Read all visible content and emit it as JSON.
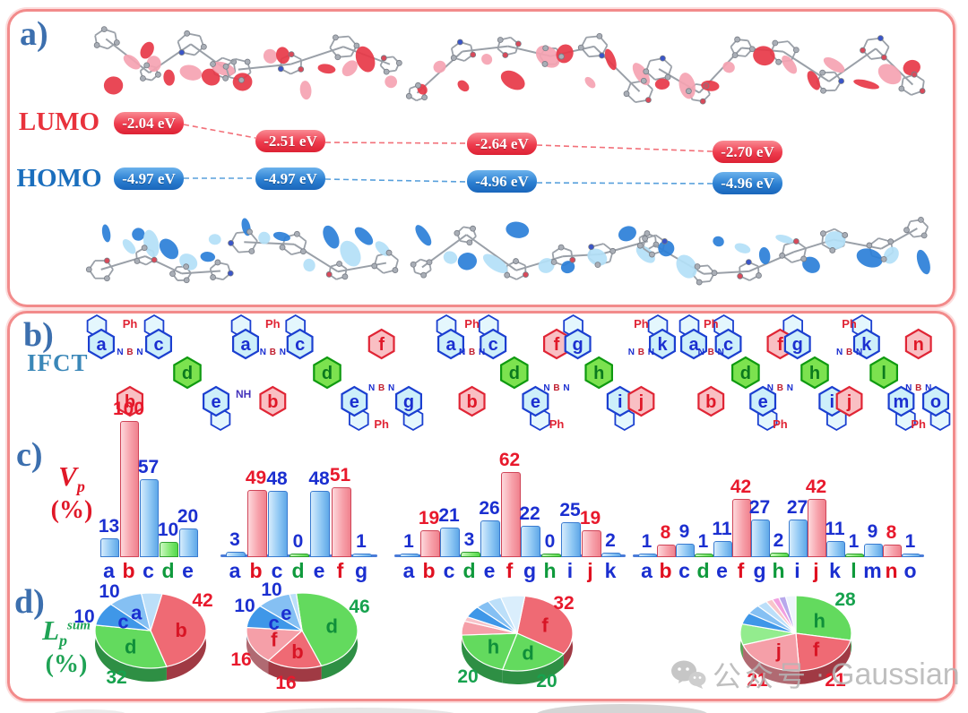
{
  "palette": {
    "panel_border": "#f28b8b",
    "panel_label_blue": "#3c6fae",
    "lumo_red": "#e8323c",
    "homo_blue": "#1a6ebd",
    "ifct_teal": "#3a87b8",
    "vp_red": "#e01828",
    "lp_green": "#1fa355",
    "value_blue": "#1b2fd0",
    "value_red": "#e8192c",
    "value_green": "#0f9a3c",
    "bar_blue": "#8ec6f2",
    "bar_red": "#f59aa4",
    "bar_green": "#7be066",
    "pie_red": "#ef6a74",
    "pie_green": "#63da5e",
    "pie_pink": "#f59fa8",
    "pie_blue": "#3f97e8",
    "watermark_gray": "#b5b5b5"
  },
  "panel_a": {
    "label": "a)",
    "rows": [
      {
        "name": "LUMO",
        "values": [
          "-2.04 eV",
          "-2.51 eV",
          "-2.64 eV",
          "-2.70 eV"
        ]
      },
      {
        "name": "HOMO",
        "values": [
          "-4.97 eV",
          "-4.97 eV",
          "-4.96 eV",
          "-4.96 eV"
        ]
      }
    ]
  },
  "panel_b": {
    "label": "b)",
    "title": "IFCT",
    "ph_label": "Ph",
    "atom_n": "N",
    "atom_b": "B",
    "structures": [
      {
        "nh_label": "NH",
        "fragments": [
          {
            "label": "a",
            "color": "blue",
            "pos": "T"
          },
          {
            "label": "b",
            "color": "red",
            "pos": "B"
          },
          {
            "label": "c",
            "color": "blue",
            "pos": "T"
          },
          {
            "label": "d",
            "color": "green",
            "pos": "M"
          },
          {
            "label": "e",
            "color": "blue",
            "pos": "B"
          }
        ]
      },
      {
        "fragments": [
          {
            "label": "a",
            "color": "blue",
            "pos": "T"
          },
          {
            "label": "b",
            "color": "red",
            "pos": "B"
          },
          {
            "label": "c",
            "color": "blue",
            "pos": "T"
          },
          {
            "label": "d",
            "color": "green",
            "pos": "M"
          },
          {
            "label": "e",
            "color": "blue",
            "pos": "B"
          },
          {
            "label": "f",
            "color": "red",
            "pos": "T"
          },
          {
            "label": "g",
            "color": "blue",
            "pos": "B"
          }
        ]
      },
      {
        "fragments": [
          {
            "label": "a",
            "color": "blue",
            "pos": "T"
          },
          {
            "label": "b",
            "color": "red",
            "pos": "B"
          },
          {
            "label": "c",
            "color": "blue",
            "pos": "T"
          },
          {
            "label": "d",
            "color": "green",
            "pos": "M"
          },
          {
            "label": "e",
            "color": "blue",
            "pos": "B"
          },
          {
            "label": "f",
            "color": "red",
            "pos": "T"
          },
          {
            "label": "g",
            "color": "blue",
            "pos": "T"
          },
          {
            "label": "h",
            "color": "green",
            "pos": "M"
          },
          {
            "label": "i",
            "color": "blue",
            "pos": "B"
          },
          {
            "label": "j",
            "color": "red",
            "pos": "B"
          },
          {
            "label": "k",
            "color": "blue",
            "pos": "T"
          }
        ]
      },
      {
        "fragments": [
          {
            "label": "a",
            "color": "blue",
            "pos": "T"
          },
          {
            "label": "b",
            "color": "red",
            "pos": "B"
          },
          {
            "label": "c",
            "color": "blue",
            "pos": "T"
          },
          {
            "label": "d",
            "color": "green",
            "pos": "M"
          },
          {
            "label": "e",
            "color": "blue",
            "pos": "B"
          },
          {
            "label": "f",
            "color": "red",
            "pos": "T"
          },
          {
            "label": "g",
            "color": "blue",
            "pos": "T"
          },
          {
            "label": "h",
            "color": "green",
            "pos": "M"
          },
          {
            "label": "i",
            "color": "blue",
            "pos": "B"
          },
          {
            "label": "j",
            "color": "red",
            "pos": "B"
          },
          {
            "label": "k",
            "color": "blue",
            "pos": "T"
          },
          {
            "label": "l",
            "color": "green",
            "pos": "M"
          },
          {
            "label": "m",
            "color": "blue",
            "pos": "B"
          },
          {
            "label": "n",
            "color": "red",
            "pos": "T"
          },
          {
            "label": "o",
            "color": "blue",
            "pos": "B"
          }
        ]
      }
    ]
  },
  "panel_c": {
    "label": "c)",
    "axis_label": "V",
    "axis_sub": "p",
    "axis_unit": "(%)"
  },
  "panel_d": {
    "label": "d)",
    "axis_label": "L",
    "axis_sub": "p",
    "axis_sup": "sum",
    "axis_unit": "(%)"
  },
  "watermark": {
    "icon": "wechat-icon",
    "text": "公众号",
    "separator": "·",
    "brand": "Gaussian"
  },
  "chart_data": [
    {
      "type": "bar",
      "id": "vp-compound-1",
      "title": "Vp (%)",
      "categories": [
        "a",
        "b",
        "c",
        "d",
        "e"
      ],
      "values": [
        13,
        100,
        57,
        10,
        20
      ],
      "colors": [
        "blue",
        "red",
        "blue",
        "green",
        "blue"
      ],
      "ylim": [
        0,
        100
      ]
    },
    {
      "type": "bar",
      "id": "vp-compound-2",
      "title": "Vp (%)",
      "categories": [
        "a",
        "b",
        "c",
        "d",
        "e",
        "f",
        "g"
      ],
      "values": [
        3,
        49,
        48,
        0,
        48,
        51,
        1
      ],
      "colors": [
        "blue",
        "red",
        "blue",
        "green",
        "blue",
        "red",
        "blue"
      ],
      "ylim": [
        0,
        100
      ]
    },
    {
      "type": "bar",
      "id": "vp-compound-3",
      "title": "Vp (%)",
      "categories": [
        "a",
        "b",
        "c",
        "d",
        "e",
        "f",
        "g",
        "h",
        "i",
        "j",
        "k"
      ],
      "values": [
        1,
        19,
        21,
        3,
        26,
        62,
        22,
        0,
        25,
        19,
        2
      ],
      "colors": [
        "blue",
        "red",
        "blue",
        "green",
        "blue",
        "red",
        "blue",
        "green",
        "blue",
        "red",
        "blue"
      ],
      "ylim": [
        0,
        100
      ]
    },
    {
      "type": "bar",
      "id": "vp-compound-4",
      "title": "Vp (%)",
      "categories": [
        "a",
        "b",
        "c",
        "d",
        "e",
        "f",
        "g",
        "h",
        "i",
        "j",
        "k",
        "l",
        "m",
        "n",
        "o"
      ],
      "values": [
        1,
        8,
        9,
        1,
        11,
        42,
        27,
        2,
        27,
        42,
        11,
        1,
        9,
        8,
        1
      ],
      "colors": [
        "blue",
        "red",
        "blue",
        "green",
        "blue",
        "red",
        "blue",
        "green",
        "blue",
        "red",
        "blue",
        "green",
        "blue",
        "red",
        "blue"
      ],
      "ylim": [
        0,
        100
      ]
    },
    {
      "type": "pie",
      "id": "lp-sum-compound-1",
      "title": "Lp sum (%)",
      "start_angle": 12,
      "slices": [
        {
          "label": "b",
          "value": 42,
          "color": "red"
        },
        {
          "label": "d",
          "value": 32,
          "color": "green"
        },
        {
          "label": "c",
          "value": 10,
          "color": "blue"
        },
        {
          "label": "a",
          "value": 10,
          "color": "lightblue"
        },
        {
          "label": "",
          "value": 6,
          "color": "paleblue"
        }
      ]
    },
    {
      "type": "pie",
      "id": "lp-sum-compound-2",
      "title": "Lp sum (%)",
      "start_angle": -6,
      "slices": [
        {
          "label": "d",
          "value": 46,
          "color": "green"
        },
        {
          "label": "b",
          "value": 16,
          "color": "red"
        },
        {
          "label": "f",
          "value": 16,
          "color": "pink"
        },
        {
          "label": "c",
          "value": 10,
          "color": "blue"
        },
        {
          "label": "e",
          "value": 10,
          "color": "lightblue"
        },
        {
          "label": "",
          "value": 2,
          "color": "paleblue"
        }
      ]
    },
    {
      "type": "pie",
      "id": "lp-sum-compound-3",
      "title": "Lp sum (%)",
      "start_angle": 8,
      "slices": [
        {
          "label": "f",
          "value": 32,
          "color": "red"
        },
        {
          "label": "d",
          "value": 20,
          "color": "green"
        },
        {
          "label": "h",
          "value": 20,
          "color": "green"
        },
        {
          "label": "",
          "value": 6,
          "color": "pink"
        },
        {
          "label": "",
          "value": 2,
          "color": "lightpink"
        },
        {
          "label": "",
          "value": 5,
          "color": "blue"
        },
        {
          "label": "",
          "value": 4,
          "color": "lightblue"
        },
        {
          "label": "",
          "value": 4,
          "color": "paleblue"
        },
        {
          "label": "",
          "value": 7,
          "color": "palecyan"
        }
      ]
    },
    {
      "type": "pie",
      "id": "lp-sum-compound-4",
      "title": "Lp sum (%)",
      "start_angle": 0,
      "slices": [
        {
          "label": "h",
          "value": 28,
          "color": "green"
        },
        {
          "label": "f",
          "value": 21,
          "color": "red"
        },
        {
          "label": "j",
          "value": 21,
          "color": "pink"
        },
        {
          "label": "",
          "value": 9,
          "color": "lightgreen"
        },
        {
          "label": "",
          "value": 5,
          "color": "blue"
        },
        {
          "label": "",
          "value": 4,
          "color": "lightblue"
        },
        {
          "label": "",
          "value": 3,
          "color": "paleblue"
        },
        {
          "label": "",
          "value": 2,
          "color": "lightpink"
        },
        {
          "label": "",
          "value": 2,
          "color": "magenta"
        },
        {
          "label": "",
          "value": 2,
          "color": "violet"
        },
        {
          "label": "",
          "value": 3,
          "color": "palewhite"
        }
      ]
    },
    {
      "type": "level-diagram",
      "id": "frontier-orbital-energies",
      "series": [
        {
          "name": "LUMO",
          "values_eV": [
            -2.04,
            -2.51,
            -2.64,
            -2.7
          ]
        },
        {
          "name": "HOMO",
          "values_eV": [
            -4.97,
            -4.97,
            -4.96,
            -4.96
          ]
        }
      ]
    }
  ]
}
